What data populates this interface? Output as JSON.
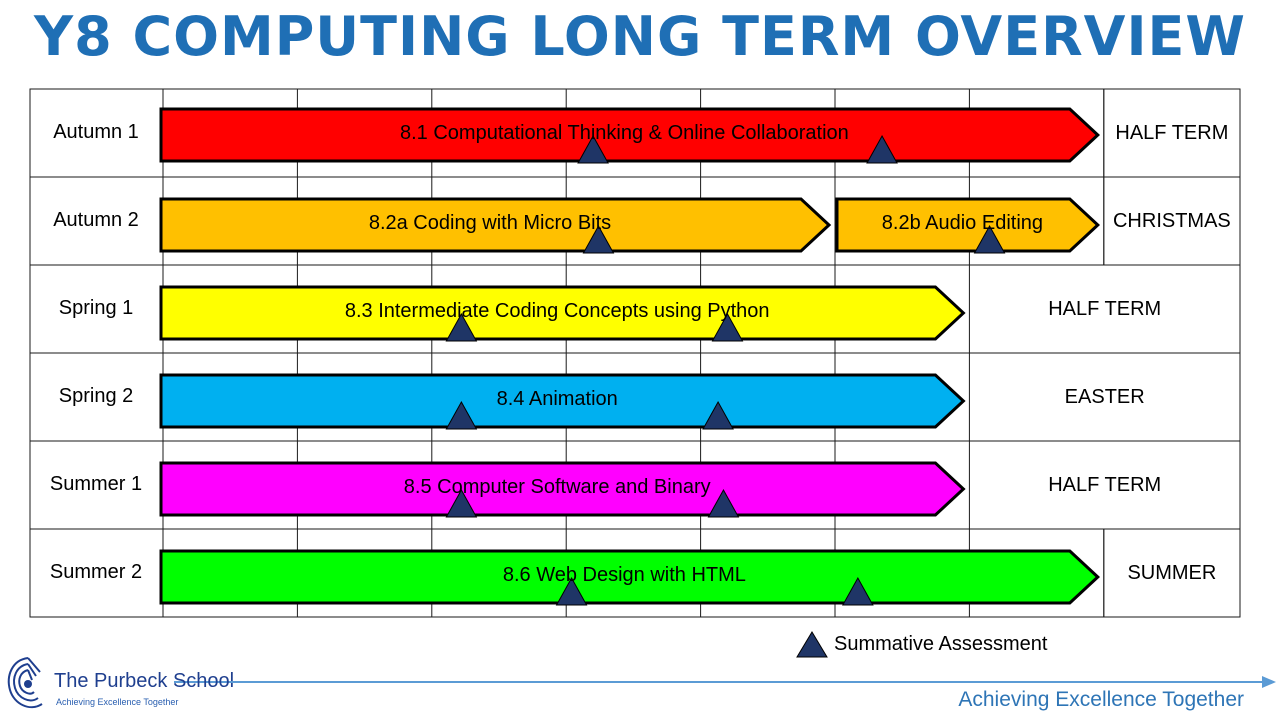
{
  "title": "Y8 COMPUTING LONG TERM OVERVIEW",
  "colors": {
    "title": "#1f6fb5",
    "grid_line": "#1a1a1a",
    "bar_outline": "#000000",
    "assessment_marker": "#1f3566",
    "footer_blue": "#2e75b6"
  },
  "rows": [
    {
      "term": "Autumn 1",
      "units": [
        {
          "label": "8.1 Computational Thinking & Online Collaboration",
          "color": "#ff0000",
          "start_week": 0,
          "end_week": 7,
          "assessments_at_week": [
            3.2,
            5.35
          ]
        }
      ],
      "break": {
        "label": "HALF TERM",
        "start_week": 7
      }
    },
    {
      "term": "Autumn 2",
      "units": [
        {
          "label": "8.2a Coding with Micro Bits",
          "color": "#ffc000",
          "start_week": 0,
          "end_week": 5,
          "assessments_at_week": [
            3.24
          ]
        },
        {
          "label": "8.2b Audio Editing",
          "color": "#ffc000",
          "start_week": 5,
          "end_week": 7,
          "assessments_at_week": [
            6.15
          ]
        }
      ],
      "break": {
        "label": "CHRISTMAS",
        "start_week": 7
      }
    },
    {
      "term": "Spring 1",
      "units": [
        {
          "label": "8.3 Intermediate Coding Concepts using Python",
          "color": "#ffff00",
          "start_week": 0,
          "end_week": 6,
          "assessments_at_week": [
            2.22,
            4.2
          ]
        }
      ],
      "break": {
        "label": "HALF TERM",
        "start_week": 6
      }
    },
    {
      "term": "Spring 2",
      "units": [
        {
          "label": "8.4 Animation",
          "color": "#00b0f0",
          "start_week": 0,
          "end_week": 6,
          "assessments_at_week": [
            2.22,
            4.13
          ]
        }
      ],
      "break": {
        "label": "EASTER",
        "start_week": 6
      }
    },
    {
      "term": "Summer 1",
      "units": [
        {
          "label": "8.5 Computer Software and Binary",
          "color": "#ff00ff",
          "start_week": 0,
          "end_week": 6,
          "assessments_at_week": [
            2.22,
            4.17
          ]
        }
      ],
      "break": {
        "label": "HALF TERM",
        "start_week": 6
      }
    },
    {
      "term": "Summer 2",
      "units": [
        {
          "label": "8.6 Web Design with HTML",
          "color": "#00ff00",
          "start_week": 0,
          "end_week": 7,
          "assessments_at_week": [
            3.04,
            5.17
          ]
        }
      ],
      "break": {
        "label": "SUMMER",
        "start_week": 7
      }
    }
  ],
  "legend": {
    "label": "Summative Assessment",
    "icon": "triangle-icon"
  },
  "footer": {
    "school_name": "The Purbeck School",
    "school_motto": "Achieving Excellence Together",
    "motto": "Achieving Excellence Together",
    "logo_icon": "shell-logo-icon"
  }
}
